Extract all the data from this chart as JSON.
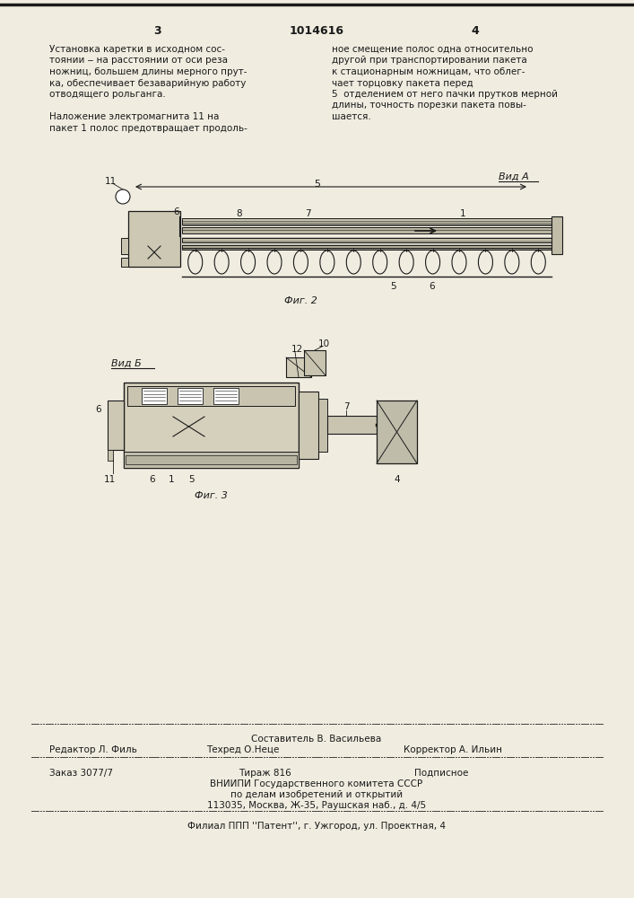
{
  "bg_color": "#f0ece0",
  "text_color": "#1a1a1a",
  "title_number": "1014616",
  "page_left": "3",
  "page_right": "4",
  "col1_text": [
    "Установка каретки в исходном сос-",
    "тоянии ‒ на расстоянии от оси реза",
    "ножниц, большем длины мерного прут-",
    "ка, обеспечивает безаварийную работу",
    "отводящего рольганга.",
    "",
    "Наложение электромагнита 11 на",
    "пакет 1 полос предотвращает продоль-"
  ],
  "col2_text": [
    "ное смещение полос одна относительно",
    "другой при транспортировании пакета",
    "к стационарным ножницам, что облег-",
    "чает торцовку пакета перед",
    "5  отделением от него пачки прутков мерной",
    "длины, точность порезки пакета повы-",
    "шается."
  ],
  "fig2_label": "Фиг. 2",
  "fig3_label": "Фиг. 3",
  "vidA_label": "Вид A",
  "vidB_label": "Вид Б",
  "footer_line1": "Составитель В. Васильева",
  "footer_editor": "Редактор Л. Филь",
  "footer_techr": "Техред О.Неце",
  "footer_corr": "Корректор А. Ильин",
  "footer_order": "Заказ 3077/7",
  "footer_tirazh": "Тираж 816",
  "footer_podp": "Подписное",
  "footer_vniip": "ВНИИПИ Государственного комитета СССР",
  "footer_affairs": "по делам изобретений и открытий",
  "footer_addr": "113035, Москва, Ж-35, Раушская наб., д. 4/5",
  "footer_patent": "Филиал ППП ''Патент'', г. Ужгород, ул. Проектная, 4"
}
